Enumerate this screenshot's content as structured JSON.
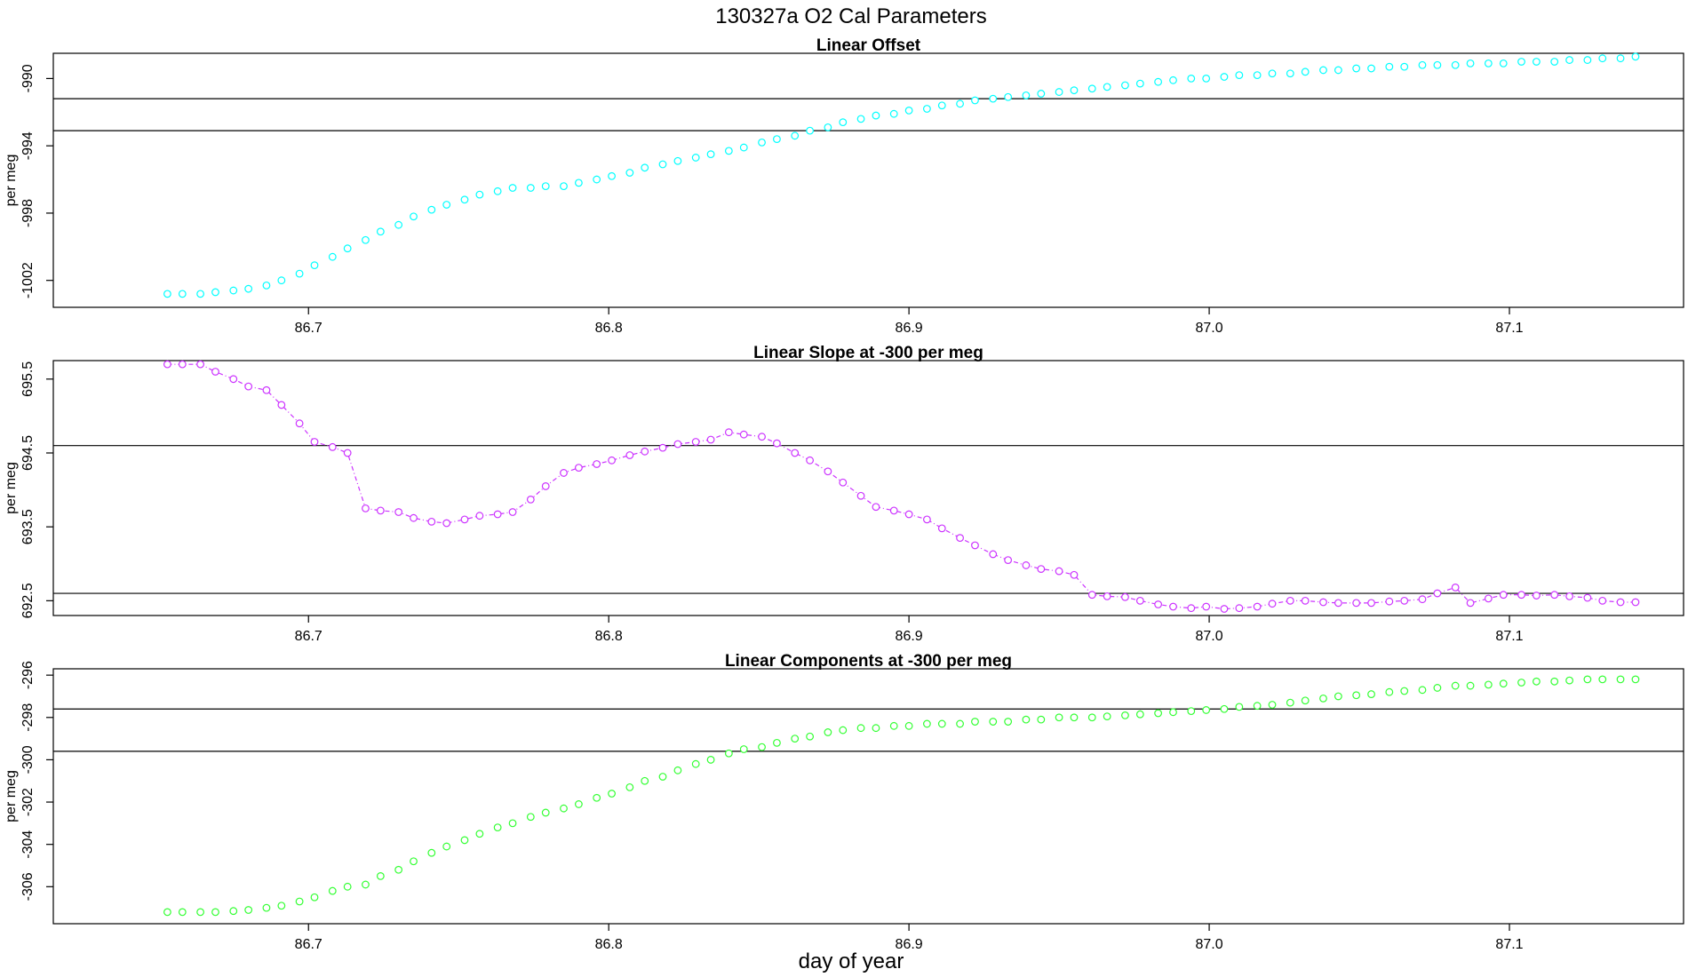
{
  "title": "130327a   O2 Cal Parameters",
  "xlabel": "day of year",
  "chart_data": [
    {
      "type": "scatter",
      "title": "Linear Offset",
      "ylabel": "per meg",
      "color": "#00ffff",
      "xlim": [
        86.615,
        87.158
      ],
      "ylim": [
        -1003.6,
        -988.5
      ],
      "xticks": [
        "86.7",
        "86.8",
        "86.9",
        "87.0",
        "87.1"
      ],
      "yticks": [
        "-990",
        "-994",
        "-998",
        "-1002"
      ],
      "hlines": [
        -991.2,
        -993.1
      ],
      "x": [
        86.653,
        86.658,
        86.664,
        86.669,
        86.675,
        86.68,
        86.686,
        86.691,
        86.697,
        86.702,
        86.708,
        86.713,
        86.719,
        86.724,
        86.73,
        86.735,
        86.741,
        86.746,
        86.752,
        86.757,
        86.763,
        86.768,
        86.774,
        86.779,
        86.785,
        86.79,
        86.796,
        86.801,
        86.807,
        86.812,
        86.818,
        86.823,
        86.829,
        86.834,
        86.84,
        86.845,
        86.851,
        86.856,
        86.862,
        86.867,
        86.873,
        86.878,
        86.884,
        86.889,
        86.895,
        86.9,
        86.906,
        86.911,
        86.917,
        86.922,
        86.928,
        86.933,
        86.939,
        86.944,
        86.95,
        86.955,
        86.961,
        86.966,
        86.972,
        86.977,
        86.983,
        86.988,
        86.994,
        86.999,
        87.005,
        87.01,
        87.016,
        87.021,
        87.027,
        87.032,
        87.038,
        87.043,
        87.049,
        87.054,
        87.06,
        87.065,
        87.071,
        87.076,
        87.082,
        87.087,
        87.093,
        87.098,
        87.104,
        87.109,
        87.115,
        87.12,
        87.126,
        87.131,
        87.137,
        87.142
      ],
      "y": [
        -1002.8,
        -1002.8,
        -1002.8,
        -1002.7,
        -1002.6,
        -1002.5,
        -1002.3,
        -1002.0,
        -1001.6,
        -1001.1,
        -1000.6,
        -1000.1,
        -999.6,
        -999.1,
        -998.7,
        -998.2,
        -997.8,
        -997.5,
        -997.2,
        -996.9,
        -996.7,
        -996.5,
        -996.5,
        -996.4,
        -996.4,
        -996.2,
        -996.0,
        -995.8,
        -995.6,
        -995.3,
        -995.1,
        -994.9,
        -994.7,
        -994.5,
        -994.3,
        -994.1,
        -993.8,
        -993.6,
        -993.4,
        -993.1,
        -992.9,
        -992.6,
        -992.4,
        -992.2,
        -992.1,
        -991.9,
        -991.8,
        -991.6,
        -991.5,
        -991.3,
        -991.2,
        -991.1,
        -991.0,
        -990.9,
        -990.8,
        -990.7,
        -990.6,
        -990.5,
        -990.4,
        -990.3,
        -990.2,
        -990.1,
        -990.0,
        -990.0,
        -989.9,
        -989.8,
        -989.8,
        -989.7,
        -989.7,
        -989.6,
        -989.5,
        -989.5,
        -989.4,
        -989.4,
        -989.3,
        -989.3,
        -989.2,
        -989.2,
        -989.2,
        -989.1,
        -989.1,
        -989.1,
        -989.0,
        -989.0,
        -989.0,
        -988.9,
        -988.9,
        -988.8,
        -988.8,
        -988.7
      ]
    },
    {
      "type": "line",
      "title": "Linear Slope at -300 per meg",
      "ylabel": "per meg",
      "color": "#cc33ff",
      "xlim": [
        86.615,
        87.158
      ],
      "ylim": [
        692.3,
        695.75
      ],
      "xticks": [
        "86.7",
        "86.8",
        "86.9",
        "87.0",
        "87.1"
      ],
      "yticks": [
        "695.5",
        "694.5",
        "693.5",
        "692.5"
      ],
      "hlines": [
        694.6,
        692.6
      ],
      "x": [
        86.653,
        86.658,
        86.664,
        86.669,
        86.675,
        86.68,
        86.686,
        86.691,
        86.697,
        86.702,
        86.708,
        86.713,
        86.719,
        86.724,
        86.73,
        86.735,
        86.741,
        86.746,
        86.752,
        86.757,
        86.763,
        86.768,
        86.774,
        86.779,
        86.785,
        86.79,
        86.796,
        86.801,
        86.807,
        86.812,
        86.818,
        86.823,
        86.829,
        86.834,
        86.84,
        86.845,
        86.851,
        86.856,
        86.862,
        86.867,
        86.873,
        86.878,
        86.884,
        86.889,
        86.895,
        86.9,
        86.906,
        86.911,
        86.917,
        86.922,
        86.928,
        86.933,
        86.939,
        86.944,
        86.95,
        86.955,
        86.961,
        86.966,
        86.972,
        86.977,
        86.983,
        86.988,
        86.994,
        86.999,
        87.005,
        87.01,
        87.016,
        87.021,
        87.027,
        87.032,
        87.038,
        87.043,
        87.049,
        87.054,
        87.06,
        87.065,
        87.071,
        87.076,
        87.082,
        87.087,
        87.093,
        87.098,
        87.104,
        87.109,
        87.115,
        87.12,
        87.126,
        87.131,
        87.137,
        87.142
      ],
      "y": [
        695.7,
        695.7,
        695.7,
        695.6,
        695.5,
        695.4,
        695.35,
        695.15,
        694.9,
        694.65,
        694.58,
        694.5,
        693.75,
        693.72,
        693.7,
        693.62,
        693.57,
        693.55,
        693.6,
        693.65,
        693.67,
        693.7,
        693.87,
        694.05,
        694.23,
        694.3,
        694.35,
        694.4,
        694.47,
        694.52,
        694.57,
        694.62,
        694.65,
        694.68,
        694.78,
        694.75,
        694.72,
        694.63,
        694.5,
        694.4,
        694.25,
        694.1,
        693.92,
        693.77,
        693.72,
        693.67,
        693.6,
        693.48,
        693.35,
        693.25,
        693.13,
        693.05,
        692.98,
        692.93,
        692.9,
        692.85,
        692.58,
        692.56,
        692.55,
        692.5,
        692.45,
        692.42,
        692.4,
        692.42,
        692.39,
        692.4,
        692.42,
        692.46,
        692.5,
        692.5,
        692.48,
        692.47,
        692.47,
        692.47,
        692.49,
        692.5,
        692.52,
        692.6,
        692.68,
        692.47,
        692.53,
        692.58,
        692.58,
        692.57,
        692.58,
        692.56,
        692.54,
        692.5,
        692.48,
        692.48
      ]
    },
    {
      "type": "scatter",
      "title": "Linear Components at -300 per meg",
      "ylabel": "per meg",
      "color": "#33ff33",
      "xlim": [
        86.615,
        87.158
      ],
      "ylim": [
        -307.75,
        -295.7
      ],
      "xticks": [
        "86.7",
        "86.8",
        "86.9",
        "87.0",
        "87.1"
      ],
      "yticks": [
        "-296",
        "-298",
        "-300",
        "-302",
        "-304",
        "-306"
      ],
      "hlines": [
        -297.6,
        -299.6
      ],
      "x": [
        86.653,
        86.658,
        86.664,
        86.669,
        86.675,
        86.68,
        86.686,
        86.691,
        86.697,
        86.702,
        86.708,
        86.713,
        86.719,
        86.724,
        86.73,
        86.735,
        86.741,
        86.746,
        86.752,
        86.757,
        86.763,
        86.768,
        86.774,
        86.779,
        86.785,
        86.79,
        86.796,
        86.801,
        86.807,
        86.812,
        86.818,
        86.823,
        86.829,
        86.834,
        86.84,
        86.845,
        86.851,
        86.856,
        86.862,
        86.867,
        86.873,
        86.878,
        86.884,
        86.889,
        86.895,
        86.9,
        86.906,
        86.911,
        86.917,
        86.922,
        86.928,
        86.933,
        86.939,
        86.944,
        86.95,
        86.955,
        86.961,
        86.966,
        86.972,
        86.977,
        86.983,
        86.988,
        86.994,
        86.999,
        87.005,
        87.01,
        87.016,
        87.021,
        87.027,
        87.032,
        87.038,
        87.043,
        87.049,
        87.054,
        87.06,
        87.065,
        87.071,
        87.076,
        87.082,
        87.087,
        87.093,
        87.098,
        87.104,
        87.109,
        87.115,
        87.12,
        87.126,
        87.131,
        87.137,
        87.142
      ],
      "y": [
        -307.2,
        -307.2,
        -307.2,
        -307.2,
        -307.15,
        -307.1,
        -307.0,
        -306.9,
        -306.7,
        -306.5,
        -306.2,
        -306.0,
        -305.9,
        -305.5,
        -305.2,
        -304.8,
        -304.4,
        -304.1,
        -303.8,
        -303.5,
        -303.2,
        -303.0,
        -302.7,
        -302.5,
        -302.3,
        -302.1,
        -301.8,
        -301.6,
        -301.3,
        -301.0,
        -300.8,
        -300.5,
        -300.2,
        -300.0,
        -299.7,
        -299.5,
        -299.4,
        -299.2,
        -299.0,
        -298.9,
        -298.7,
        -298.6,
        -298.5,
        -298.5,
        -298.4,
        -298.4,
        -298.3,
        -298.3,
        -298.3,
        -298.2,
        -298.2,
        -298.2,
        -298.1,
        -298.1,
        -298.0,
        -298.0,
        -298.0,
        -297.95,
        -297.9,
        -297.85,
        -297.8,
        -297.75,
        -297.7,
        -297.65,
        -297.6,
        -297.5,
        -297.45,
        -297.4,
        -297.3,
        -297.2,
        -297.1,
        -297.0,
        -296.95,
        -296.9,
        -296.8,
        -296.75,
        -296.7,
        -296.6,
        -296.5,
        -296.5,
        -296.45,
        -296.4,
        -296.35,
        -296.3,
        -296.3,
        -296.25,
        -296.2,
        -296.2,
        -296.2,
        -296.2
      ]
    }
  ]
}
